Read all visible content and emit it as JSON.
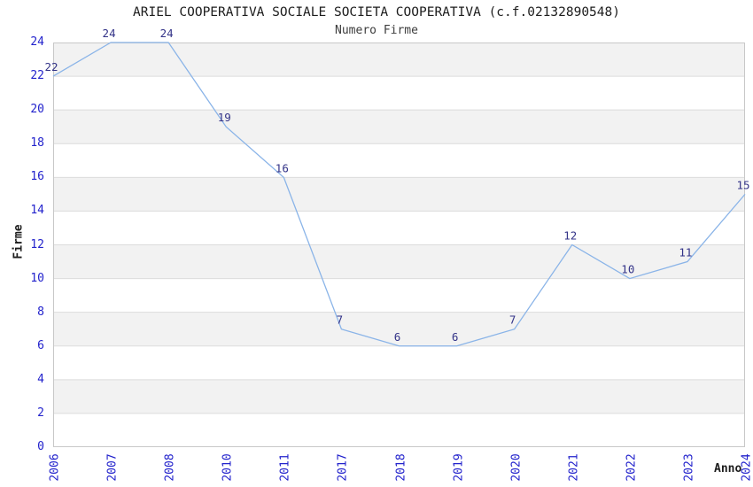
{
  "header": {
    "title": "ARIEL COOPERATIVA SOCIALE SOCIETA COOPERATIVA (c.f.02132890548)",
    "subtitle": "Numero Firme"
  },
  "axes": {
    "y_label": "Firme",
    "x_label": "Anno",
    "y_ticks": [
      0,
      2,
      4,
      6,
      8,
      10,
      12,
      14,
      16,
      18,
      20,
      22,
      24
    ]
  },
  "chart_data": {
    "type": "line",
    "title": "ARIEL COOPERATIVA SOCIALE SOCIETA COOPERATIVA (c.f.02132890548)",
    "subtitle": "Numero Firme",
    "xlabel": "Anno",
    "ylabel": "Firme",
    "x": [
      "2006",
      "2007",
      "2008",
      "2010",
      "2011",
      "2017",
      "2018",
      "2019",
      "2020",
      "2021",
      "2022",
      "2023",
      "2024"
    ],
    "values": [
      22,
      24,
      24,
      19,
      16,
      7,
      6,
      6,
      7,
      12,
      10,
      11,
      15
    ],
    "ylim": [
      0,
      24
    ],
    "ytick_step": 2,
    "grid": "horizontal-bands",
    "legend": "none",
    "colors": {
      "line": "#8ab4e8",
      "point_label": "#333388",
      "tick_label": "#2222cc",
      "band": "#f2f2f2",
      "band_alt": "#ffffff",
      "gridline": "#dcdcdc",
      "plot_border": "#c8c8c8"
    }
  }
}
